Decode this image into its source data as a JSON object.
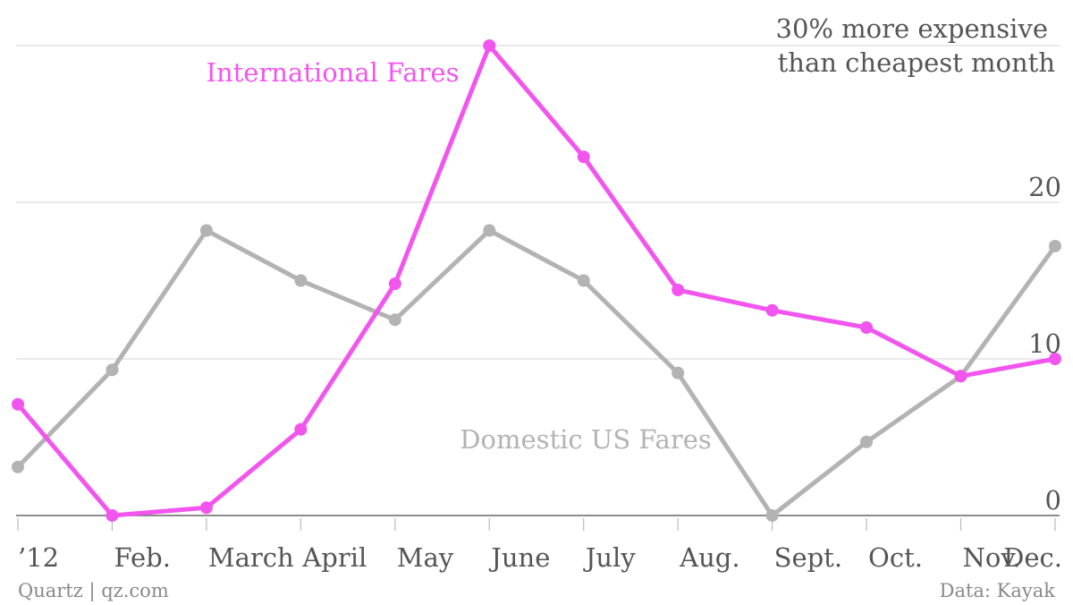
{
  "chart_data": {
    "type": "line",
    "x": [
      "’12",
      "Feb.",
      "March",
      "April",
      "May",
      "June",
      "July",
      "Aug.",
      "Sept.",
      "Oct.",
      "Nov.",
      "Dec."
    ],
    "ylabel": [
      "30% more expensive",
      "than cheapest month"
    ],
    "ylim": [
      0,
      30
    ],
    "yticks": [
      "0",
      "10",
      "20"
    ],
    "grid": true,
    "series": [
      {
        "name": "International Fares",
        "color": "#f255ee",
        "values": [
          7.1,
          0,
          0.5,
          5.5,
          14.8,
          30,
          22.9,
          14.4,
          13.1,
          12.0,
          8.9,
          10.0
        ]
      },
      {
        "name": "Domestic US Fares",
        "color": "#b3b3b3",
        "values": [
          3.1,
          9.3,
          18.2,
          15.0,
          12.5,
          18.2,
          15.0,
          9.1,
          0,
          4.7,
          8.9,
          17.2
        ]
      }
    ]
  },
  "source_left": "Quartz | qz.com",
  "source_right": "Data: Kayak"
}
